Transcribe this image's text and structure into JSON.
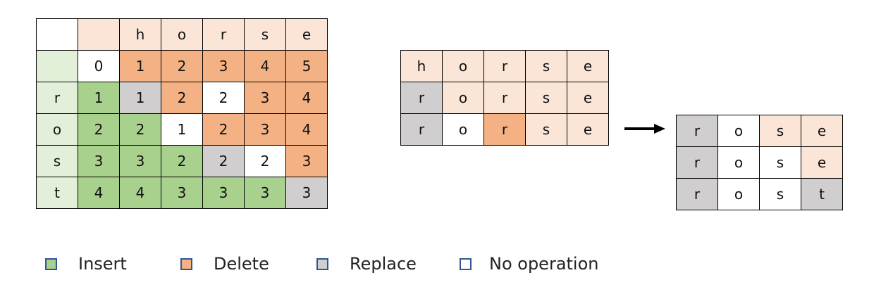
{
  "colors": {
    "insert": "#a9d18e",
    "delete": "#f4b183",
    "replace": "#d0cece",
    "no_operation": "#ffffff",
    "header": "#fbe5d6",
    "row_header": "#e2f0d9",
    "legend_border": "#2f5597"
  },
  "dp_table": {
    "rows": [
      [
        {
          "t": "",
          "c": "nop"
        },
        {
          "t": "",
          "c": "hdr"
        },
        {
          "t": "h",
          "c": "hdr"
        },
        {
          "t": "o",
          "c": "hdr"
        },
        {
          "t": "r",
          "c": "hdr"
        },
        {
          "t": "s",
          "c": "hdr"
        },
        {
          "t": "e",
          "c": "hdr"
        }
      ],
      [
        {
          "t": "",
          "c": "rowhdr"
        },
        {
          "t": "0",
          "c": "nop"
        },
        {
          "t": "1",
          "c": "del"
        },
        {
          "t": "2",
          "c": "del"
        },
        {
          "t": "3",
          "c": "del"
        },
        {
          "t": "4",
          "c": "del"
        },
        {
          "t": "5",
          "c": "del"
        }
      ],
      [
        {
          "t": "r",
          "c": "rowhdr"
        },
        {
          "t": "1",
          "c": "ins"
        },
        {
          "t": "1",
          "c": "rep"
        },
        {
          "t": "2",
          "c": "del"
        },
        {
          "t": "2",
          "c": "nop"
        },
        {
          "t": "3",
          "c": "del"
        },
        {
          "t": "4",
          "c": "del"
        }
      ],
      [
        {
          "t": "o",
          "c": "rowhdr"
        },
        {
          "t": "2",
          "c": "ins"
        },
        {
          "t": "2",
          "c": "ins"
        },
        {
          "t": "1",
          "c": "nop"
        },
        {
          "t": "2",
          "c": "del"
        },
        {
          "t": "3",
          "c": "del"
        },
        {
          "t": "4",
          "c": "del"
        }
      ],
      [
        {
          "t": "s",
          "c": "rowhdr"
        },
        {
          "t": "3",
          "c": "ins"
        },
        {
          "t": "3",
          "c": "ins"
        },
        {
          "t": "2",
          "c": "ins"
        },
        {
          "t": "2",
          "c": "rep"
        },
        {
          "t": "2",
          "c": "nop"
        },
        {
          "t": "3",
          "c": "del"
        }
      ],
      [
        {
          "t": "t",
          "c": "rowhdr"
        },
        {
          "t": "4",
          "c": "ins"
        },
        {
          "t": "4",
          "c": "ins"
        },
        {
          "t": "3",
          "c": "ins"
        },
        {
          "t": "3",
          "c": "ins"
        },
        {
          "t": "3",
          "c": "ins"
        },
        {
          "t": "3",
          "c": "rep"
        }
      ]
    ]
  },
  "steps_table": {
    "rows": [
      [
        {
          "t": "h",
          "c": "hdr"
        },
        {
          "t": "o",
          "c": "hdr"
        },
        {
          "t": "r",
          "c": "hdr"
        },
        {
          "t": "s",
          "c": "hdr"
        },
        {
          "t": "e",
          "c": "hdr"
        }
      ],
      [
        {
          "t": "r",
          "c": "rep"
        },
        {
          "t": "o",
          "c": "hdr"
        },
        {
          "t": "r",
          "c": "hdr"
        },
        {
          "t": "s",
          "c": "hdr"
        },
        {
          "t": "e",
          "c": "hdr"
        }
      ],
      [
        {
          "t": "r",
          "c": "rep"
        },
        {
          "t": "o",
          "c": "nop"
        },
        {
          "t": "r",
          "c": "del"
        },
        {
          "t": "s",
          "c": "hdr"
        },
        {
          "t": "e",
          "c": "hdr"
        }
      ]
    ]
  },
  "result_table": {
    "rows": [
      [
        {
          "t": "r",
          "c": "rep"
        },
        {
          "t": "o",
          "c": "nop"
        },
        {
          "t": "s",
          "c": "hdr"
        },
        {
          "t": "e",
          "c": "hdr"
        }
      ],
      [
        {
          "t": "r",
          "c": "rep"
        },
        {
          "t": "o",
          "c": "nop"
        },
        {
          "t": "s",
          "c": "nop"
        },
        {
          "t": "e",
          "c": "hdr"
        }
      ],
      [
        {
          "t": "r",
          "c": "rep"
        },
        {
          "t": "o",
          "c": "nop"
        },
        {
          "t": "s",
          "c": "nop"
        },
        {
          "t": "t",
          "c": "rep"
        }
      ]
    ]
  },
  "legend": [
    {
      "label": "Insert",
      "color_key": "insert"
    },
    {
      "label": "Delete",
      "color_key": "delete"
    },
    {
      "label": "Replace",
      "color_key": "replace"
    },
    {
      "label": "No operation",
      "color_key": "no_operation"
    }
  ]
}
